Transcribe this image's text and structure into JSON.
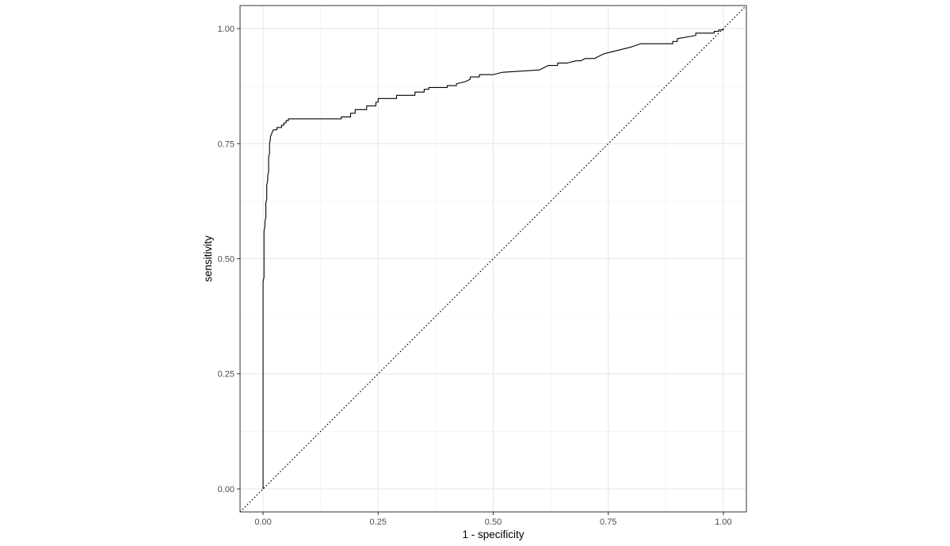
{
  "chart_data": {
    "type": "line",
    "xlabel": "1 - specificity",
    "ylabel": "sensitivity",
    "xlim": [
      -0.05,
      1.05
    ],
    "ylim": [
      -0.05,
      1.05
    ],
    "x_ticks": [
      0,
      0.25,
      0.5,
      0.75,
      1
    ],
    "y_ticks": [
      0,
      0.25,
      0.5,
      0.75,
      1
    ],
    "x_tick_labels": [
      "0.00",
      "0.25",
      "0.50",
      "0.75",
      "1.00"
    ],
    "y_tick_labels": [
      "0.00",
      "0.25",
      "0.50",
      "0.75",
      "1.00"
    ],
    "grid": true,
    "series": [
      {
        "style": "solid",
        "color": "#000000",
        "x": [
          0,
          0,
          0.002,
          0.002,
          0.004,
          0.004,
          0.006,
          0.006,
          0.008,
          0.008,
          0.01,
          0.01,
          0.012,
          0.012,
          0.014,
          0.014,
          0.016,
          0.016,
          0.018,
          0.018,
          0.02,
          0.02,
          0.022,
          0.022,
          0.024,
          0.024,
          0.026,
          0.026,
          0.03,
          0.03,
          0.04,
          0.04,
          0.045,
          0.045,
          0.05,
          0.05,
          0.055,
          0.055,
          0.17,
          0.17,
          0.19,
          0.19,
          0.2,
          0.2,
          0.225,
          0.225,
          0.245,
          0.245,
          0.25,
          0.25,
          0.29,
          0.29,
          0.33,
          0.33,
          0.35,
          0.35,
          0.36,
          0.36,
          0.4,
          0.4,
          0.42,
          0.42,
          0.44,
          0.45,
          0.45,
          0.47,
          0.47,
          0.5,
          0.52,
          0.6,
          0.62,
          0.64,
          0.64,
          0.66,
          0.68,
          0.69,
          0.7,
          0.72,
          0.74,
          0.76,
          0.8,
          0.82,
          0.89,
          0.89,
          0.9,
          0.9,
          0.94,
          0.94,
          0.98,
          0.98,
          0.99,
          0.99,
          1,
          1
        ],
        "y": [
          0,
          0.45,
          0.46,
          0.56,
          0.57,
          0.58,
          0.59,
          0.62,
          0.63,
          0.66,
          0.67,
          0.68,
          0.69,
          0.72,
          0.73,
          0.75,
          0.76,
          0.765,
          0.77,
          0.77,
          0.775,
          0.775,
          0.78,
          0.78,
          0.78,
          0.78,
          0.78,
          0.78,
          0.78,
          0.785,
          0.785,
          0.79,
          0.79,
          0.795,
          0.795,
          0.8,
          0.8,
          0.804,
          0.804,
          0.808,
          0.808,
          0.816,
          0.816,
          0.824,
          0.824,
          0.832,
          0.832,
          0.84,
          0.84,
          0.848,
          0.848,
          0.855,
          0.855,
          0.862,
          0.862,
          0.868,
          0.868,
          0.872,
          0.872,
          0.876,
          0.876,
          0.88,
          0.885,
          0.89,
          0.895,
          0.895,
          0.9,
          0.9,
          0.905,
          0.91,
          0.92,
          0.92,
          0.925,
          0.925,
          0.93,
          0.93,
          0.935,
          0.935,
          0.945,
          0.95,
          0.96,
          0.967,
          0.967,
          0.972,
          0.972,
          0.978,
          0.985,
          0.99,
          0.99,
          0.994,
          0.994,
          0.997,
          0.997,
          1
        ]
      },
      {
        "style": "dotted",
        "color": "#000000",
        "x": [
          -0.05,
          1.05
        ],
        "y": [
          -0.05,
          1.05
        ]
      }
    ]
  }
}
